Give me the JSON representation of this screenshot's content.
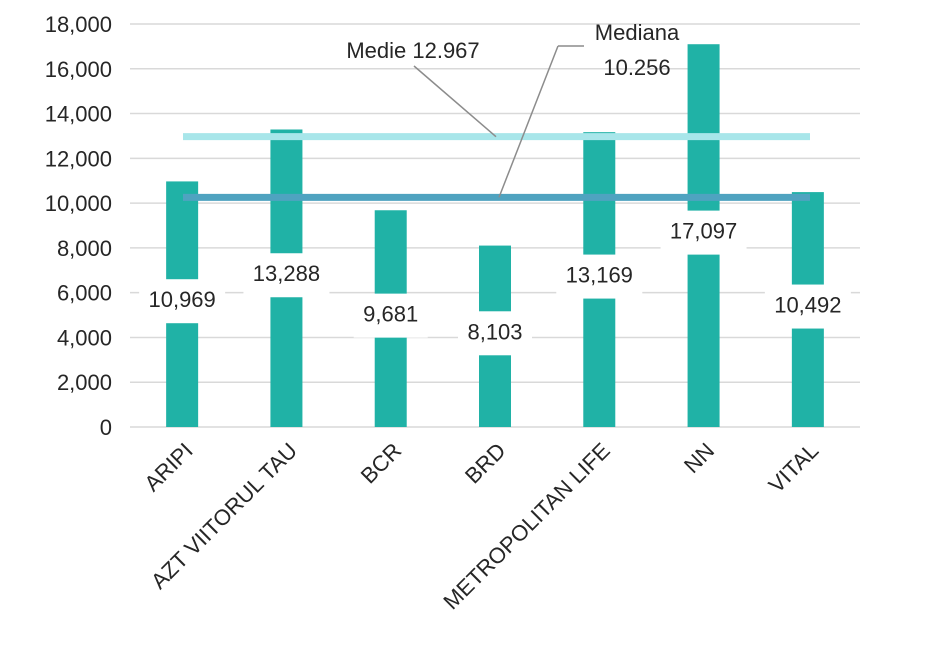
{
  "chart_data": {
    "type": "bar",
    "categories": [
      "ARIPI",
      "AZT VIITORUL TAU",
      "BCR",
      "BRD",
      "METROPOLITAN LIFE",
      "NN",
      "VITAL"
    ],
    "values": [
      10969,
      13288,
      9681,
      8103,
      13169,
      17097,
      10492
    ],
    "data_labels": [
      "10,969",
      "13,288",
      "9,681",
      "8,103",
      "13,169",
      "17,097",
      "10,492"
    ],
    "yticks": [
      0,
      2000,
      4000,
      6000,
      8000,
      10000,
      12000,
      14000,
      16000,
      18000
    ],
    "ytick_labels": [
      "0",
      "2,000",
      "4,000",
      "6,000",
      "8,000",
      "10,000",
      "12,000",
      "14,000",
      "16,000",
      "18,000"
    ],
    "ylim": [
      0,
      18000
    ],
    "grid": true,
    "legend": "none",
    "reference_lines": [
      {
        "value": 12967,
        "label": "Medie 12.967",
        "color": "#a8e6ea"
      },
      {
        "value": 10256,
        "label_lines": [
          "Mediana",
          "10.256"
        ],
        "color": "#4fa3c0"
      }
    ],
    "colors": {
      "bar": "#20b2a6",
      "grid": "#d9d9d9"
    }
  }
}
